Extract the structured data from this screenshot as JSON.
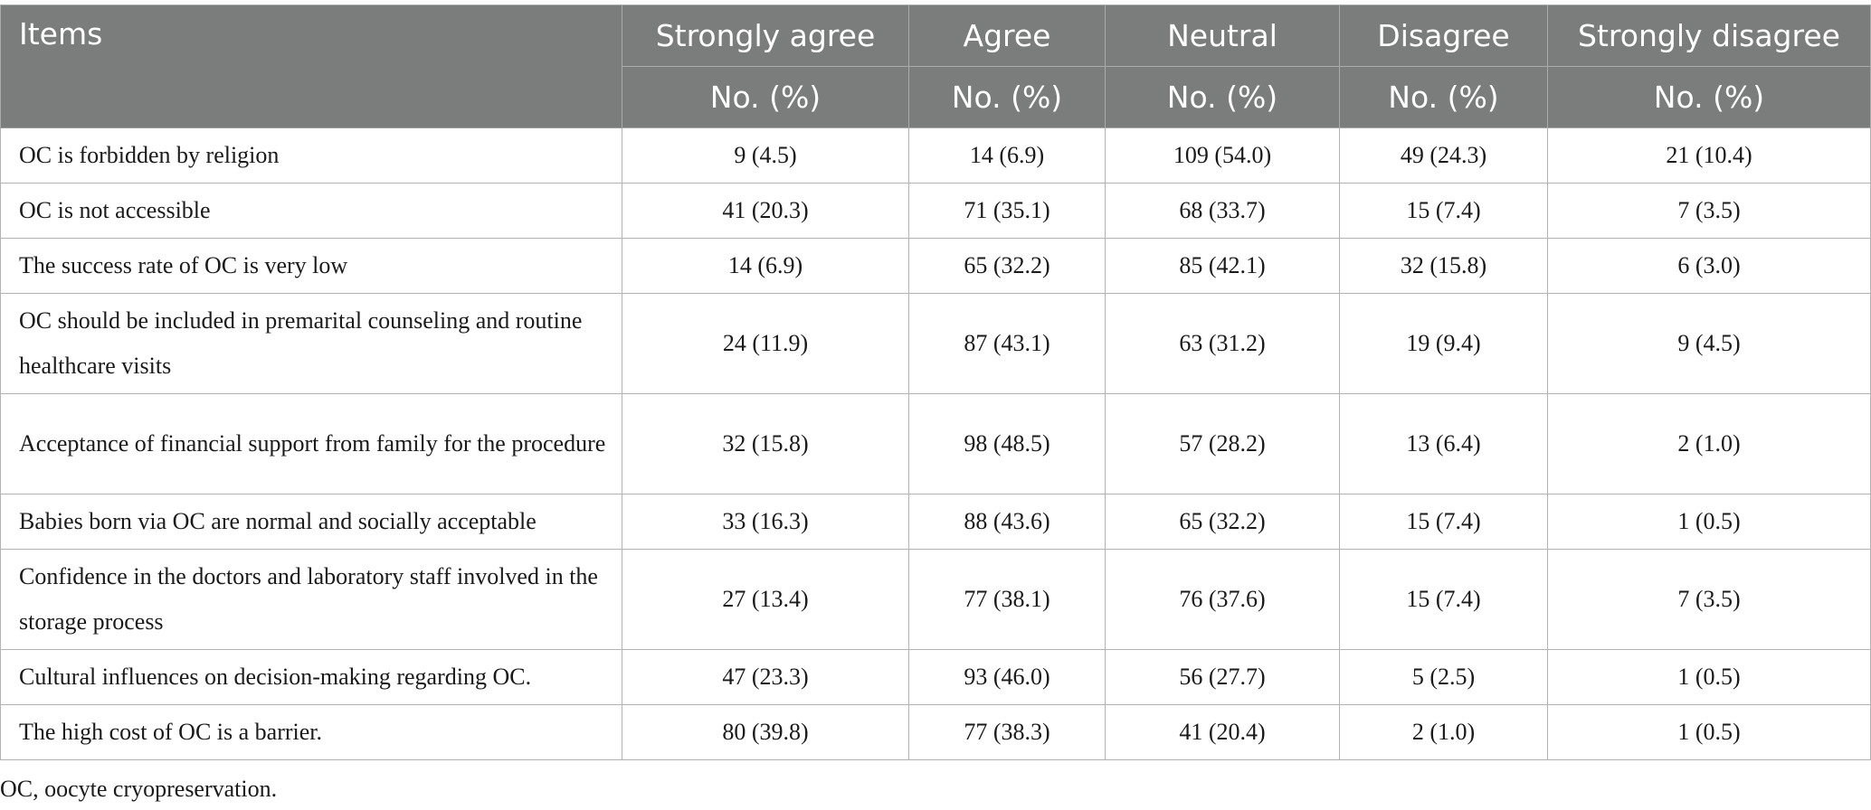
{
  "table": {
    "headers": [
      "Items",
      "Strongly agree",
      "Agree",
      "Neutral",
      "Disagree",
      "Strongly disagree"
    ],
    "subheaders": [
      "No. (%)",
      "No. (%)",
      "No. (%)",
      "No. (%)",
      "No. (%)"
    ],
    "rows": [
      {
        "item": "OC is forbidden by religion",
        "values": [
          "9 (4.5)",
          "14 (6.9)",
          "109 (54.0)",
          "49 (24.3)",
          "21 (10.4)"
        ]
      },
      {
        "item": "OC is not accessible",
        "values": [
          "41 (20.3)",
          "71 (35.1)",
          "68 (33.7)",
          "15 (7.4)",
          "7 (3.5)"
        ]
      },
      {
        "item": "The success rate of OC is very low",
        "values": [
          "14 (6.9)",
          "65 (32.2)",
          "85 (42.1)",
          "32 (15.8)",
          "6 (3.0)"
        ]
      },
      {
        "item": "OC should be included in premarital counseling and routine healthcare visits",
        "values": [
          "24 (11.9)",
          "87 (43.1)",
          "63 (31.2)",
          "19 (9.4)",
          "9 (4.5)"
        ]
      },
      {
        "item": "Acceptance of financial support from family for the procedure",
        "values": [
          "32 (15.8)",
          "98 (48.5)",
          "57 (28.2)",
          "13 (6.4)",
          "2 (1.0)"
        ]
      },
      {
        "item": "Babies born via OC are normal and socially acceptable",
        "values": [
          "33 (16.3)",
          "88 (43.6)",
          "65 (32.2)",
          "15 (7.4)",
          "1 (0.5)"
        ]
      },
      {
        "item": "Confidence in the doctors and laboratory staff involved in the storage process",
        "values": [
          "27 (13.4)",
          "77 (38.1)",
          "76 (37.6)",
          "15 (7.4)",
          "7 (3.5)"
        ]
      },
      {
        "item": "Cultural influences on decision-making regarding OC.",
        "values": [
          "47 (23.3)",
          "93 (46.0)",
          "56 (27.7)",
          "5 (2.5)",
          "1 (0.5)"
        ]
      },
      {
        "item": "The high cost of OC is a barrier.",
        "values": [
          "80 (39.8)",
          "77 (38.3)",
          "41 (20.4)",
          "2 (1.0)",
          "1 (0.5)"
        ]
      }
    ]
  },
  "footnote": "OC, oocyte cryopreservation.",
  "colors": {
    "header_bg": "#7b7d7c",
    "header_text": "#ffffff",
    "border": "#b3b3b3"
  }
}
